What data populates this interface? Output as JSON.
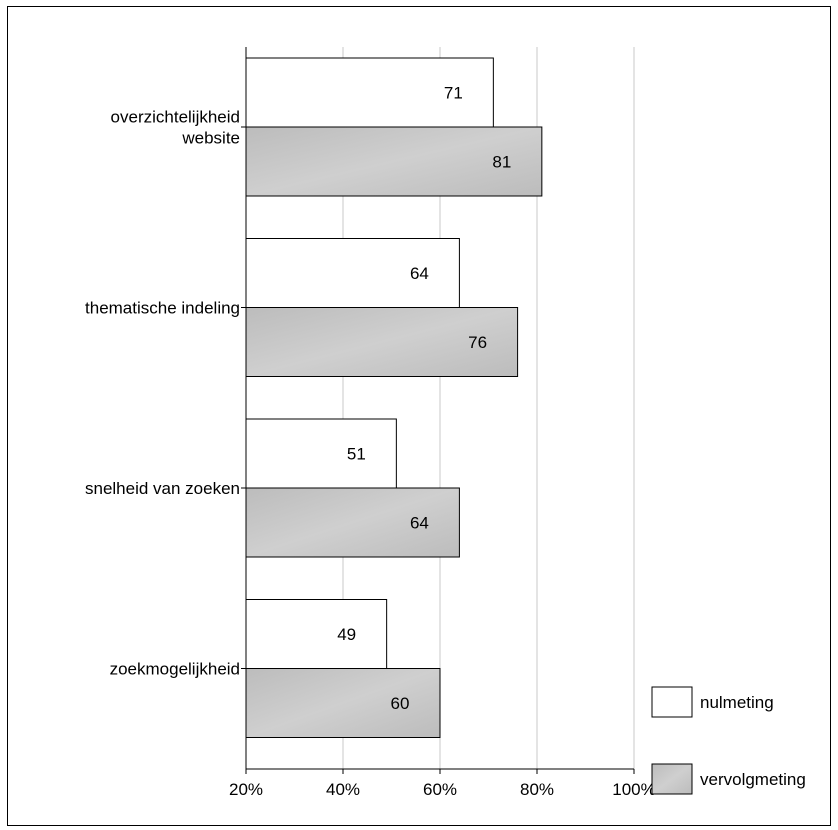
{
  "chart_data": {
    "type": "bar",
    "orientation": "horizontal",
    "categories": [
      [
        "overzichtelijkheid",
        "website"
      ],
      [
        "thematische indeling"
      ],
      [
        "snelheid van zoeken"
      ],
      [
        "zoekmogelijkheid"
      ]
    ],
    "series": [
      {
        "name": "nulmeting",
        "values": [
          71,
          64,
          51,
          49
        ],
        "color": "#ffffff"
      },
      {
        "name": "vervolgmeting",
        "values": [
          81,
          76,
          64,
          60
        ],
        "color": "#c0c0c0"
      }
    ],
    "data_labels": true,
    "xlim": [
      20,
      100
    ],
    "xticks": [
      20,
      40,
      60,
      80,
      100
    ],
    "xtick_suffix": "%",
    "grid": "vertical",
    "legend_position": "bottom-right"
  }
}
